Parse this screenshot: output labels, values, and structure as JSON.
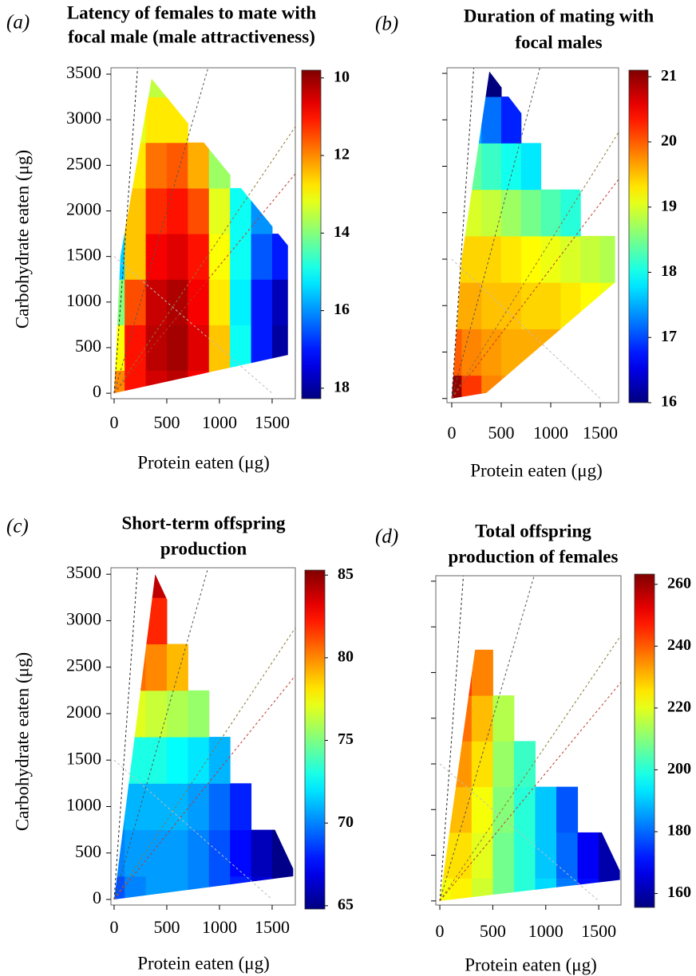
{
  "chart_data": [
    {
      "type": "heatmap",
      "panel": "(a)",
      "title": [
        "Latency of females to mate with",
        "focal male (male attractiveness)"
      ],
      "xlabel": "Protein eaten (μg)",
      "ylabel": "Carbohydrate eaten (μg)",
      "xlim": [
        -30,
        1720
      ],
      "ylim": [
        -60,
        3570
      ],
      "xticks": [
        0,
        500,
        1000,
        1500
      ],
      "yticks": [
        0,
        500,
        1000,
        1500,
        2000,
        2500,
        3000,
        3500
      ],
      "colormap": "jet",
      "zlim": [
        18.27,
        9.8
      ],
      "zticks": [
        10,
        12,
        14,
        16,
        18
      ],
      "x": [
        0,
        200,
        400,
        600,
        800,
        1000,
        1200,
        1400,
        1600
      ],
      "y": [
        0,
        500,
        1000,
        1500,
        2000,
        2500,
        3000,
        3500
      ],
      "z": [
        [
          12,
          11,
          10.5,
          10.3,
          10.8,
          12.5,
          15,
          17,
          18
        ],
        [
          13,
          11,
          10.3,
          10.1,
          10.6,
          12.5,
          15,
          17,
          18
        ],
        [
          14,
          11.5,
          10.4,
          10.2,
          10.8,
          12.8,
          15.2,
          17,
          17.8
        ],
        [
          15.5,
          12.5,
          10.8,
          10.6,
          11,
          13,
          15,
          16.5,
          17
        ],
        [
          15,
          12.5,
          11.2,
          11,
          11.5,
          13.2,
          15,
          16,
          null
        ],
        [
          14,
          12.8,
          11.8,
          11.6,
          12.3,
          13.8,
          null,
          null,
          null
        ],
        [
          13.5,
          13.2,
          12.8,
          12.8,
          null,
          null,
          null,
          null,
          null
        ],
        [
          13.8,
          13.6,
          13.5,
          null,
          null,
          null,
          null,
          null,
          null
        ]
      ]
    },
    {
      "type": "heatmap",
      "panel": "(b)",
      "title": [
        "Duration of mating with",
        "focal males"
      ],
      "xlabel": "Protein eaten (μg)",
      "xlim": [
        -48,
        1685
      ],
      "ylim": [
        -45,
        3560
      ],
      "xticks": [
        0,
        500,
        1000,
        1500
      ],
      "yticks": [
        0,
        500,
        1000,
        1500,
        2000,
        2500,
        3000,
        3500
      ],
      "show_ytick_labels": false,
      "colormap": "jet",
      "zlim": [
        16,
        21.1
      ],
      "zticks": [
        16,
        17,
        18,
        19,
        20,
        21
      ],
      "x": [
        0,
        200,
        400,
        600,
        800,
        1000,
        1200,
        1400,
        1600
      ],
      "y": [
        0,
        500,
        1000,
        1500,
        2000,
        2500,
        3000,
        3500
      ],
      "z": [
        [
          21,
          20.2,
          19.8,
          19.7,
          19.6,
          19.6,
          19.6,
          19.6,
          19.6
        ],
        [
          20,
          19.8,
          19.7,
          19.6,
          19.6,
          19.6,
          19.5,
          19.5,
          19.4
        ],
        [
          19.6,
          19.6,
          19.5,
          19.5,
          19.4,
          19.4,
          19.3,
          19.2,
          19.1
        ],
        [
          19.4,
          19.4,
          19.4,
          19.3,
          19.2,
          19.1,
          19,
          18.9,
          18.8
        ],
        [
          19.1,
          19,
          18.9,
          18.7,
          18.5,
          18.3,
          18.1,
          null,
          null
        ],
        [
          18.5,
          18.4,
          18.2,
          18,
          17.8,
          null,
          null,
          null,
          null
        ],
        [
          17.8,
          17.5,
          17.2,
          16.8,
          null,
          null,
          null,
          null,
          null
        ],
        [
          16.5,
          16.3,
          16,
          null,
          null,
          null,
          null,
          null,
          null
        ]
      ]
    },
    {
      "type": "heatmap",
      "panel": "(c)",
      "title": [
        "Short-term offspring",
        "production"
      ],
      "xlabel": "Protein eaten (μg)",
      "ylabel": "Carbohydrate eaten (μg)",
      "xlim": [
        -30,
        1720
      ],
      "ylim": [
        -60,
        3570
      ],
      "xticks": [
        0,
        500,
        1000,
        1500
      ],
      "yticks": [
        0,
        500,
        1000,
        1500,
        2000,
        2500,
        3000,
        3500
      ],
      "colormap": "jet",
      "zlim": [
        64.8,
        85.3
      ],
      "zticks": [
        65,
        70,
        75,
        80,
        85
      ],
      "x": [
        0,
        200,
        400,
        600,
        800,
        1000,
        1200,
        1400,
        1600
      ],
      "y": [
        0,
        500,
        1000,
        1500,
        2000,
        2500,
        3000,
        3500
      ],
      "z": [
        [
          69,
          70,
          70.5,
          70.5,
          70,
          69,
          68,
          66.5,
          65
        ],
        [
          70,
          70.5,
          70.5,
          70.5,
          70,
          69,
          67.5,
          66,
          65
        ],
        [
          70.5,
          71,
          71,
          71,
          70.5,
          69.5,
          68,
          null,
          null
        ],
        [
          73,
          73,
          73,
          72.5,
          72,
          71,
          null,
          null,
          null
        ],
        [
          77,
          77,
          76.5,
          76,
          75.5,
          null,
          null,
          null,
          null
        ],
        [
          80.5,
          80.5,
          80,
          79,
          null,
          null,
          null,
          null,
          null
        ],
        [
          82.5,
          82.5,
          82,
          null,
          null,
          null,
          null,
          null,
          null
        ],
        [
          84.5,
          84.5,
          84,
          null,
          null,
          null,
          null,
          null,
          null
        ]
      ]
    },
    {
      "type": "heatmap",
      "panel": "(d)",
      "title": [
        "Total offspring",
        "production of females"
      ],
      "xlabel": "Protein eaten (μg)",
      "xlim": [
        -38,
        1710
      ],
      "ylim": [
        -45,
        3560
      ],
      "xticks": [
        0,
        500,
        1000,
        1500
      ],
      "yticks": [
        0,
        500,
        1000,
        1500,
        2000,
        2500,
        3000,
        3500
      ],
      "show_ytick_labels": false,
      "colormap": "jet",
      "zlim": [
        155.5,
        263.3
      ],
      "zticks": [
        160,
        180,
        200,
        220,
        240,
        260
      ],
      "x": [
        0,
        200,
        400,
        600,
        800,
        1000,
        1200,
        1400,
        1600
      ],
      "y": [
        0,
        500,
        1000,
        1500,
        2000,
        2500,
        3000,
        3500
      ],
      "z": [
        [
          222,
          224,
          218,
          208,
          200,
          192,
          182,
          170,
          160
        ],
        [
          226,
          226,
          220,
          208,
          200,
          190,
          180,
          168,
          160
        ],
        [
          230,
          230,
          222,
          210,
          200,
          190,
          178,
          null,
          null
        ],
        [
          234,
          234,
          226,
          212,
          202,
          null,
          null,
          null,
          null
        ],
        [
          238,
          238,
          230,
          215,
          null,
          null,
          null,
          null,
          null
        ],
        [
          244,
          244,
          236,
          null,
          null,
          null,
          null,
          null,
          null
        ],
        [
          250,
          252,
          null,
          null,
          null,
          null,
          null,
          null,
          null
        ],
        [
          258,
          258,
          null,
          null,
          null,
          null,
          null,
          null,
          null
        ]
      ]
    }
  ]
}
